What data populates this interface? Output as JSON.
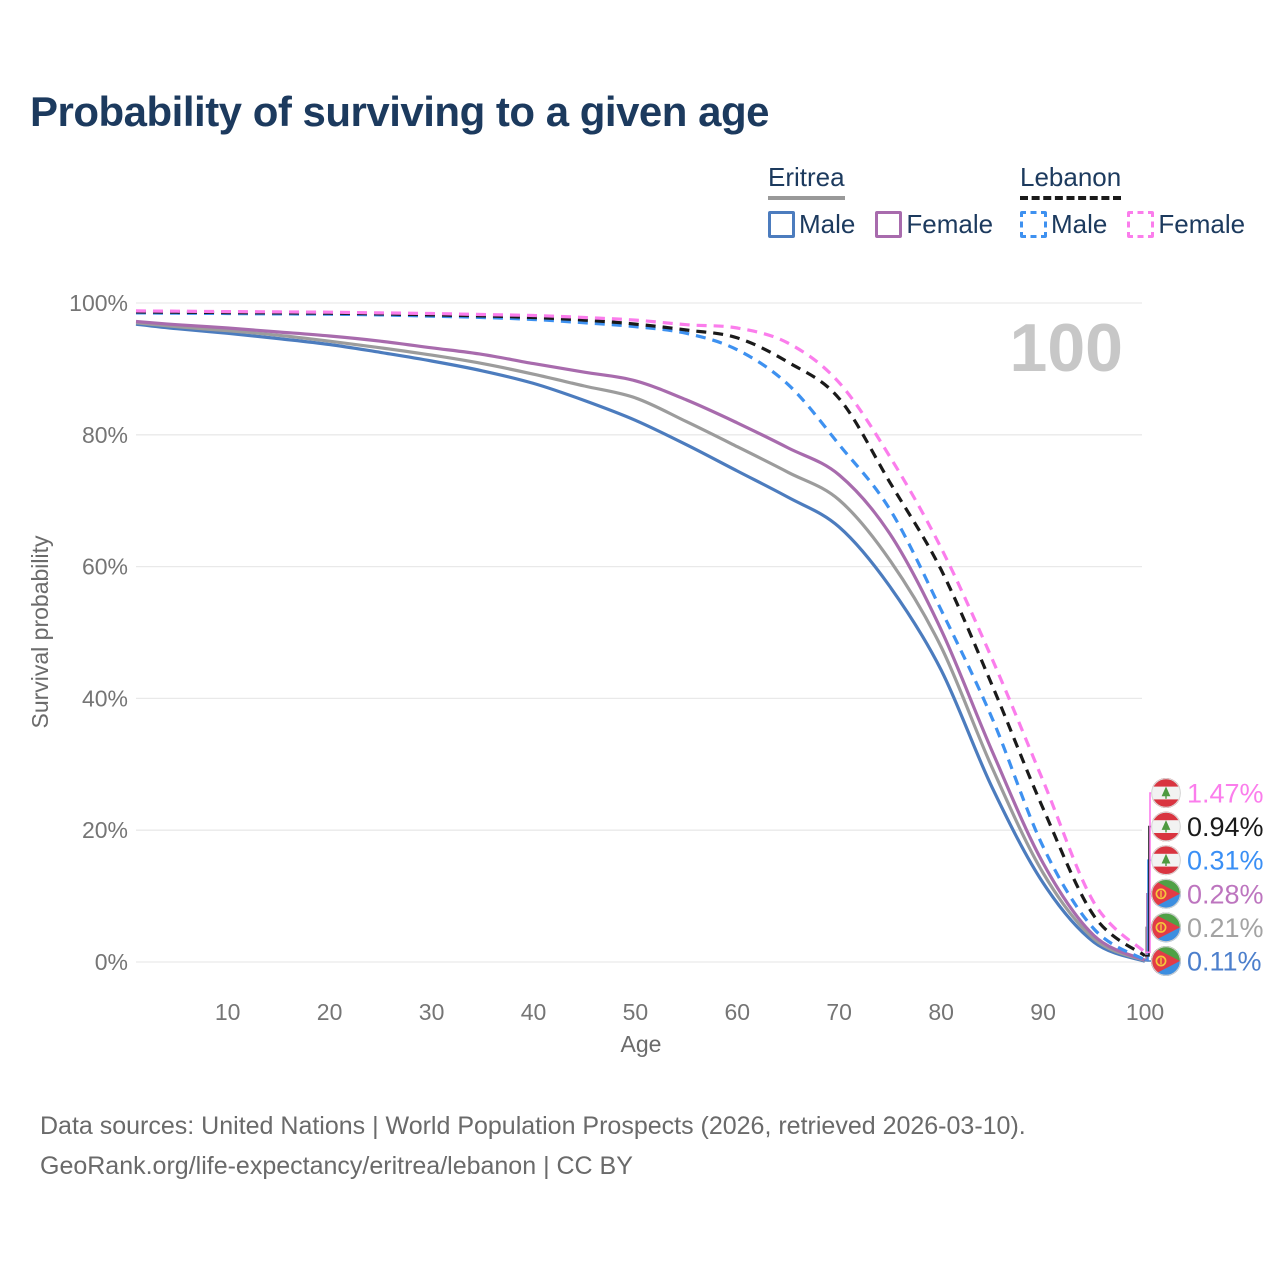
{
  "title": "Probability of surviving to a given age",
  "legend": {
    "groups": [
      {
        "country": "Eritrea",
        "line_style": "solid",
        "underline_color": "#999999",
        "items": [
          {
            "label": "Male",
            "color": "#4C7CBE",
            "dashed": false
          },
          {
            "label": "Female",
            "color": "#A86BAD",
            "dashed": false
          }
        ]
      },
      {
        "country": "Lebanon",
        "line_style": "dashed",
        "underline_color": "#1A1A1A",
        "items": [
          {
            "label": "Male",
            "color": "#3E91F0",
            "dashed": true
          },
          {
            "label": "Female",
            "color": "#FB7DEC",
            "dashed": true
          }
        ]
      }
    ]
  },
  "chart_data": {
    "type": "line",
    "title": "Probability of surviving to a given age",
    "xlabel": "Age",
    "ylabel": "Survival probability",
    "xlim": [
      1,
      100
    ],
    "ylim": [
      0,
      100
    ],
    "grid": "horizontal",
    "legend_position": "top-right",
    "annotation": "100",
    "x_ticks": [
      10,
      20,
      30,
      40,
      50,
      60,
      70,
      80,
      90,
      100
    ],
    "y_ticks": [
      0,
      20,
      40,
      60,
      80,
      100
    ],
    "y_tick_labels": [
      "0%",
      "20%",
      "40%",
      "60%",
      "80%",
      "100%"
    ],
    "x": [
      1,
      5,
      10,
      15,
      20,
      25,
      30,
      35,
      40,
      45,
      50,
      55,
      60,
      65,
      70,
      75,
      80,
      85,
      90,
      95,
      100
    ],
    "series": [
      {
        "name": "Eritrea Male",
        "key": "eritrea-male",
        "country": "Eritrea",
        "sex": "Male",
        "color": "#4C7CBE",
        "dashed": false,
        "flag": "eritrea",
        "end_label": "0.11%",
        "end_label_color": "#4C7FCC",
        "values": [
          96.8,
          96.1,
          95.4,
          94.6,
          93.7,
          92.5,
          91.2,
          89.7,
          87.8,
          85.2,
          82.2,
          78.5,
          74.5,
          70.5,
          66.0,
          56.9,
          44.3,
          26.5,
          12.0,
          3.0,
          0.11
        ]
      },
      {
        "name": "Eritrea Both sexes",
        "key": "eritrea-both",
        "country": "Eritrea",
        "sex": "Both",
        "color": "#9C9C9C",
        "dashed": false,
        "flag": "eritrea",
        "end_label": "0.21%",
        "end_label_color": "#A3A3A3",
        "values": [
          97.0,
          96.4,
          95.8,
          95.1,
          94.2,
          93.2,
          92.1,
          90.8,
          89.2,
          87.4,
          85.6,
          82.0,
          78.2,
          74.3,
          70.1,
          60.9,
          47.8,
          29.5,
          13.5,
          3.5,
          0.21
        ]
      },
      {
        "name": "Eritrea Female",
        "key": "eritrea-female",
        "country": "Eritrea",
        "sex": "Female",
        "color": "#A86BAD",
        "dashed": false,
        "flag": "eritrea",
        "end_label": "0.28%",
        "end_label_color": "#BD75BF",
        "values": [
          97.2,
          96.7,
          96.2,
          95.6,
          95.0,
          94.2,
          93.2,
          92.2,
          90.8,
          89.5,
          88.2,
          85.3,
          81.8,
          78.0,
          73.9,
          64.9,
          50.4,
          32.0,
          15.0,
          4.0,
          0.28
        ]
      },
      {
        "name": "Lebanon Male",
        "key": "lebanon-male",
        "country": "Lebanon",
        "sex": "Male",
        "color": "#3E91F0",
        "dashed": true,
        "flag": "lebanon",
        "end_label": "0.31%",
        "end_label_color": "#3A8FF5",
        "values": [
          98.5,
          98.45,
          98.4,
          98.35,
          98.3,
          98.2,
          98.0,
          97.8,
          97.5,
          97.0,
          96.4,
          95.4,
          92.9,
          87.6,
          78.5,
          68.6,
          53.4,
          37.0,
          17.5,
          5.0,
          0.31
        ]
      },
      {
        "name": "Lebanon Both sexes",
        "key": "lebanon-both",
        "country": "Lebanon",
        "sex": "Both",
        "color": "#1A1A1A",
        "dashed": true,
        "flag": "lebanon",
        "end_label": "0.94%",
        "end_label_color": "#1A1A1A",
        "values": [
          98.65,
          98.6,
          98.55,
          98.5,
          98.45,
          98.35,
          98.2,
          98.05,
          97.8,
          97.4,
          96.8,
          95.9,
          94.7,
          91.0,
          85.5,
          72.7,
          59.5,
          42.0,
          23.3,
          7.0,
          0.94
        ]
      },
      {
        "name": "Lebanon Female",
        "key": "lebanon-female",
        "country": "Lebanon",
        "sex": "Female",
        "color": "#FB7DEC",
        "dashed": true,
        "flag": "lebanon",
        "end_label": "1.47%",
        "end_label_color": "#FB7DEC",
        "values": [
          98.8,
          98.75,
          98.7,
          98.65,
          98.6,
          98.5,
          98.4,
          98.25,
          98.1,
          97.8,
          97.4,
          96.7,
          96.2,
          93.9,
          87.9,
          76.6,
          62.8,
          46.0,
          27.5,
          9.0,
          1.47
        ]
      }
    ]
  },
  "footer": {
    "line1": "Data sources: United Nations | World Population Prospects (2026, retrieved 2026-03-10).",
    "line2": "GeoRank.org/life-expectancy/eritrea/lebanon | CC BY"
  }
}
